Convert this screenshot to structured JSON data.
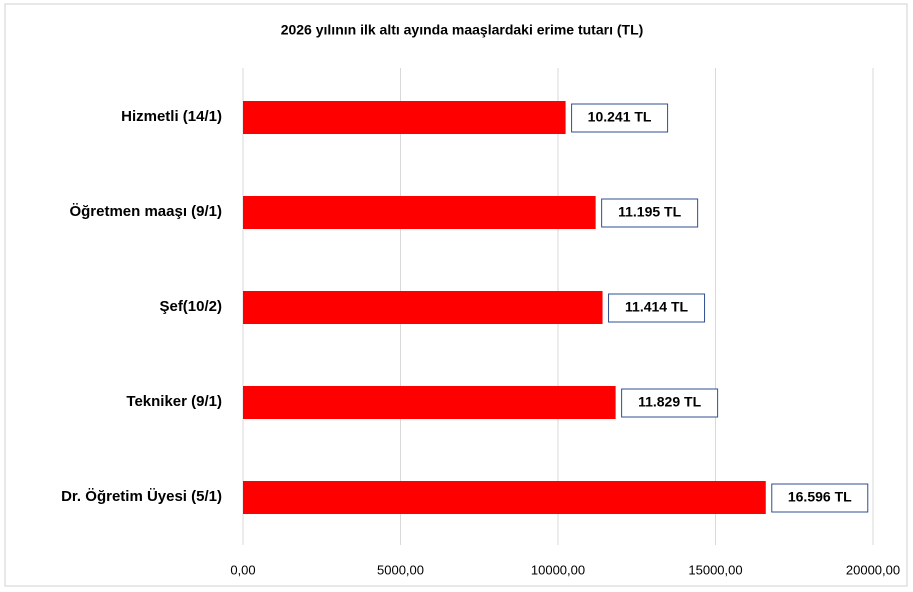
{
  "chart_data": {
    "type": "bar",
    "orientation": "horizontal",
    "title": "2026 yılının ilk altı ayında maaşlardaki erime tutarı (TL)",
    "categories": [
      "Hizmetli (14/1)",
      "Öğretmen maaşı (9/1)",
      "Şef(10/2)",
      "Tekniker (9/1)",
      "Dr. Öğretim Üyesi (5/1)"
    ],
    "values": [
      10241,
      11195,
      11414,
      11829,
      16596
    ],
    "value_labels": [
      "10.241 TL",
      "11.195 TL",
      "11.414 TL",
      "11.829 TL",
      "16.596 TL"
    ],
    "color": "#ff0000",
    "xlim": [
      0,
      20000
    ],
    "xticks": [
      {
        "value": 0,
        "label": "0,00"
      },
      {
        "value": 5000,
        "label": "5000,00"
      },
      {
        "value": 10000,
        "label": "10000,00"
      },
      {
        "value": 15000,
        "label": "15000,00"
      },
      {
        "value": 20000,
        "label": "20000,00"
      }
    ],
    "grid": true
  }
}
